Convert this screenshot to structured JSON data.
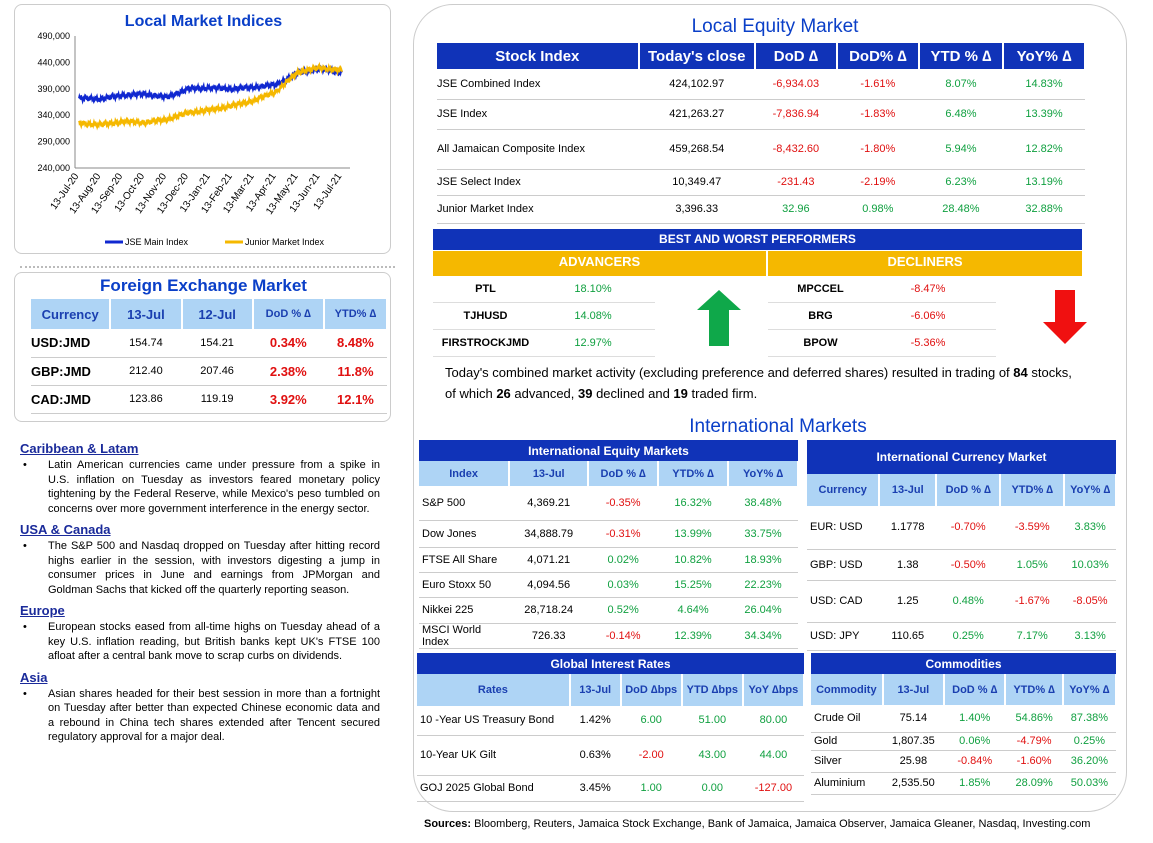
{
  "local_indices_chart": {
    "title": "Local Market Indices",
    "chart_data": {
      "type": "line",
      "title": "Local Market Indices",
      "x": [
        "13-Jul-20",
        "13-Aug-20",
        "13-Sep-20",
        "13-Oct-20",
        "13-Nov-20",
        "13-Dec-20",
        "13-Jan-21",
        "13-Feb-21",
        "13-Mar-21",
        "13-Apr-21",
        "13-May-21",
        "13-Jun-21",
        "13-Jul-21"
      ],
      "yticks": [
        "490,000",
        "440,000",
        "390,000",
        "340,000",
        "290,000",
        "240,000"
      ],
      "ylim": [
        240000,
        490000
      ],
      "series": [
        {
          "name": "JSE Main Index",
          "color": "#1028d0",
          "values": [
            372000,
            371000,
            378000,
            380000,
            374000,
            390000,
            392000,
            390000,
            393000,
            398000,
            420000,
            428000,
            421000
          ]
        },
        {
          "name": "Junior Market Index",
          "color": "#f5b800",
          "values": [
            325000,
            322000,
            328000,
            326000,
            332000,
            345000,
            350000,
            358000,
            368000,
            385000,
            422000,
            430000,
            425000
          ]
        }
      ],
      "legend": [
        "JSE Main Index",
        "Junior Market Index"
      ]
    }
  },
  "fx": {
    "title": "Foreign Exchange Market",
    "headers": [
      "Currency",
      "13-Jul",
      "12-Jul",
      "DoD % ∆",
      "YTD% ∆"
    ],
    "rows": [
      {
        "cur": "USD:JMD",
        "a": "154.74",
        "b": "154.21",
        "dod": "0.34%",
        "ytd": "8.48%"
      },
      {
        "cur": "GBP:JMD",
        "a": "212.40",
        "b": "207.46",
        "dod": "2.38%",
        "ytd": "11.8%"
      },
      {
        "cur": "CAD:JMD",
        "a": "123.86",
        "b": "119.19",
        "dod": "3.92%",
        "ytd": "12.1%"
      }
    ]
  },
  "news": [
    {
      "title": "Caribbean & Latam",
      "text": "Latin American currencies came under pressure from a spike in U.S. inflation on Tuesday as investors feared monetary policy tightening by the Federal Reserve, while Mexico's peso tumbled on concerns over more government interference in the energy sector."
    },
    {
      "title": "USA & Canada",
      "text": "The S&P 500 and Nasdaq dropped on Tuesday after hitting record highs earlier in the session, with investors digesting a jump in consumer prices in June and earnings from JPMorgan and Goldman Sachs that kicked off the quarterly reporting season."
    },
    {
      "title": "Europe",
      "text": "European stocks eased from all-time highs on Tuesday ahead of a key U.S. inflation reading, but British banks kept UK's FTSE 100 afloat after a central bank move to scrap curbs on dividends."
    },
    {
      "title": "Asia",
      "text": "Asian shares headed for their best session in more than a fortnight on Tuesday after better than expected Chinese economic data and a rebound in China tech shares extended after Tencent secured regulatory approval for a major deal."
    }
  ],
  "equity": {
    "title": "Local Equity Market",
    "headers": [
      "Stock Index",
      "Today's close",
      "DoD  ∆",
      "DoD% ∆",
      "YTD % ∆",
      "YoY% ∆"
    ],
    "rows": [
      [
        "JSE Combined Index",
        "424,102.97",
        "-6,934.03",
        "-1.61%",
        "8.07%",
        "14.83%"
      ],
      [
        "JSE Index",
        "421,263.27",
        "-7,836.94",
        "-1.83%",
        "6.48%",
        "13.39%"
      ],
      [
        "All Jamaican Composite Index",
        "459,268.54",
        "-8,432.60",
        "-1.80%",
        "5.94%",
        "12.82%"
      ],
      [
        "JSE Select Index",
        "10,349.47",
        "-231.43",
        "-2.19%",
        "6.23%",
        "13.19%"
      ],
      [
        "Junior Market Index",
        "3,396.33",
        "32.96",
        "0.98%",
        "28.48%",
        "32.88%"
      ]
    ]
  },
  "performers": {
    "title": "BEST AND WORST PERFORMERS",
    "adv_label": "ADVANCERS",
    "dec_label": "DECLINERS",
    "advancers": [
      [
        "PTL",
        "18.10%"
      ],
      [
        "TJHUSD",
        "14.08%"
      ],
      [
        "FIRSTROCKJMD",
        "12.97%"
      ]
    ],
    "decliners": [
      [
        "MPCCEL",
        "-8.47%"
      ],
      [
        "BRG",
        "-6.06%"
      ],
      [
        "BPOW",
        "-5.36%"
      ]
    ]
  },
  "summary": {
    "p1": "Today's combined market activity (excluding preference and deferred shares) resulted in trading of ",
    "n1": "84",
    "p2": " stocks, of which ",
    "n2": "26",
    "p3": " advanced, ",
    "n3": "39",
    "p4": " declined and ",
    "n4": "19",
    "p5": " traded firm."
  },
  "intl_title": "International Markets",
  "intl_equity": {
    "title": "International Equity Markets",
    "headers": [
      "Index",
      "13-Jul",
      "DoD % ∆",
      "YTD% ∆",
      "YoY% ∆"
    ],
    "rows": [
      [
        "S&P 500",
        "4,369.21",
        "-0.35%",
        "16.32%",
        "38.48%"
      ],
      [
        "Dow Jones",
        "34,888.79",
        "-0.31%",
        "13.99%",
        "33.75%"
      ],
      [
        "FTSE All Share",
        "4,071.21",
        "0.02%",
        "10.82%",
        "18.93%"
      ],
      [
        "Euro Stoxx 50",
        "4,094.56",
        "0.03%",
        "15.25%",
        "22.23%"
      ],
      [
        "Nikkei 225",
        "28,718.24",
        "0.52%",
        "4.64%",
        "26.04%"
      ],
      [
        "MSCI World Index",
        "726.33",
        "-0.14%",
        "12.39%",
        "34.34%"
      ]
    ]
  },
  "intl_currency": {
    "title": "International Currency Market",
    "headers": [
      "Currency",
      "13-Jul",
      "DoD % ∆",
      "YTD% ∆",
      "YoY% ∆"
    ],
    "rows": [
      [
        "EUR: USD",
        "1.1778",
        "-0.70%",
        "-3.59%",
        "3.83%"
      ],
      [
        "GBP: USD",
        "1.38",
        "-0.50%",
        "1.05%",
        "10.03%"
      ],
      [
        "USD: CAD",
        "1.25",
        "0.48%",
        "-1.67%",
        "-8.05%"
      ],
      [
        "USD: JPY",
        "110.65",
        "0.25%",
        "7.17%",
        "3.13%"
      ]
    ]
  },
  "rates": {
    "title": "Global Interest Rates",
    "headers": [
      "Rates",
      "13-Jul",
      "DoD ∆bps",
      "YTD ∆bps",
      "YoY ∆bps"
    ],
    "rows": [
      [
        "10 -Year US Treasury Bond",
        "1.42%",
        "6.00",
        "51.00",
        "80.00"
      ],
      [
        "10-Year UK Gilt",
        "0.63%",
        "-2.00",
        "43.00",
        "44.00"
      ],
      [
        "GOJ 2025 Global Bond",
        "3.45%",
        "1.00",
        "0.00",
        "-127.00"
      ]
    ]
  },
  "commodities": {
    "title": "Commodities",
    "headers": [
      "Commodity",
      "13-Jul",
      "DoD % ∆",
      "YTD% ∆",
      "YoY% ∆"
    ],
    "rows": [
      [
        "Crude Oil",
        "75.14",
        "1.40%",
        "54.86%",
        "87.38%"
      ],
      [
        "Gold",
        "1,807.35",
        "0.06%",
        "-4.79%",
        "0.25%"
      ],
      [
        "Silver",
        "25.98",
        "-0.84%",
        "-1.60%",
        "36.20%"
      ],
      [
        "Aluminium",
        "2,535.50",
        "1.85%",
        "28.09%",
        "50.03%"
      ]
    ]
  },
  "sources": {
    "label": "Sources:",
    "text": " Bloomberg, Reuters, Jamaica Stock Exchange, Bank of Jamaica, Jamaica Observer, Jamaica Gleaner, Nasdaq, Investing.com"
  },
  "colors": {
    "navy": "#1033b8",
    "light_blue": "#aed4f5",
    "gold": "#f5b800",
    "neg": "#e01010",
    "pos": "#10a040"
  }
}
